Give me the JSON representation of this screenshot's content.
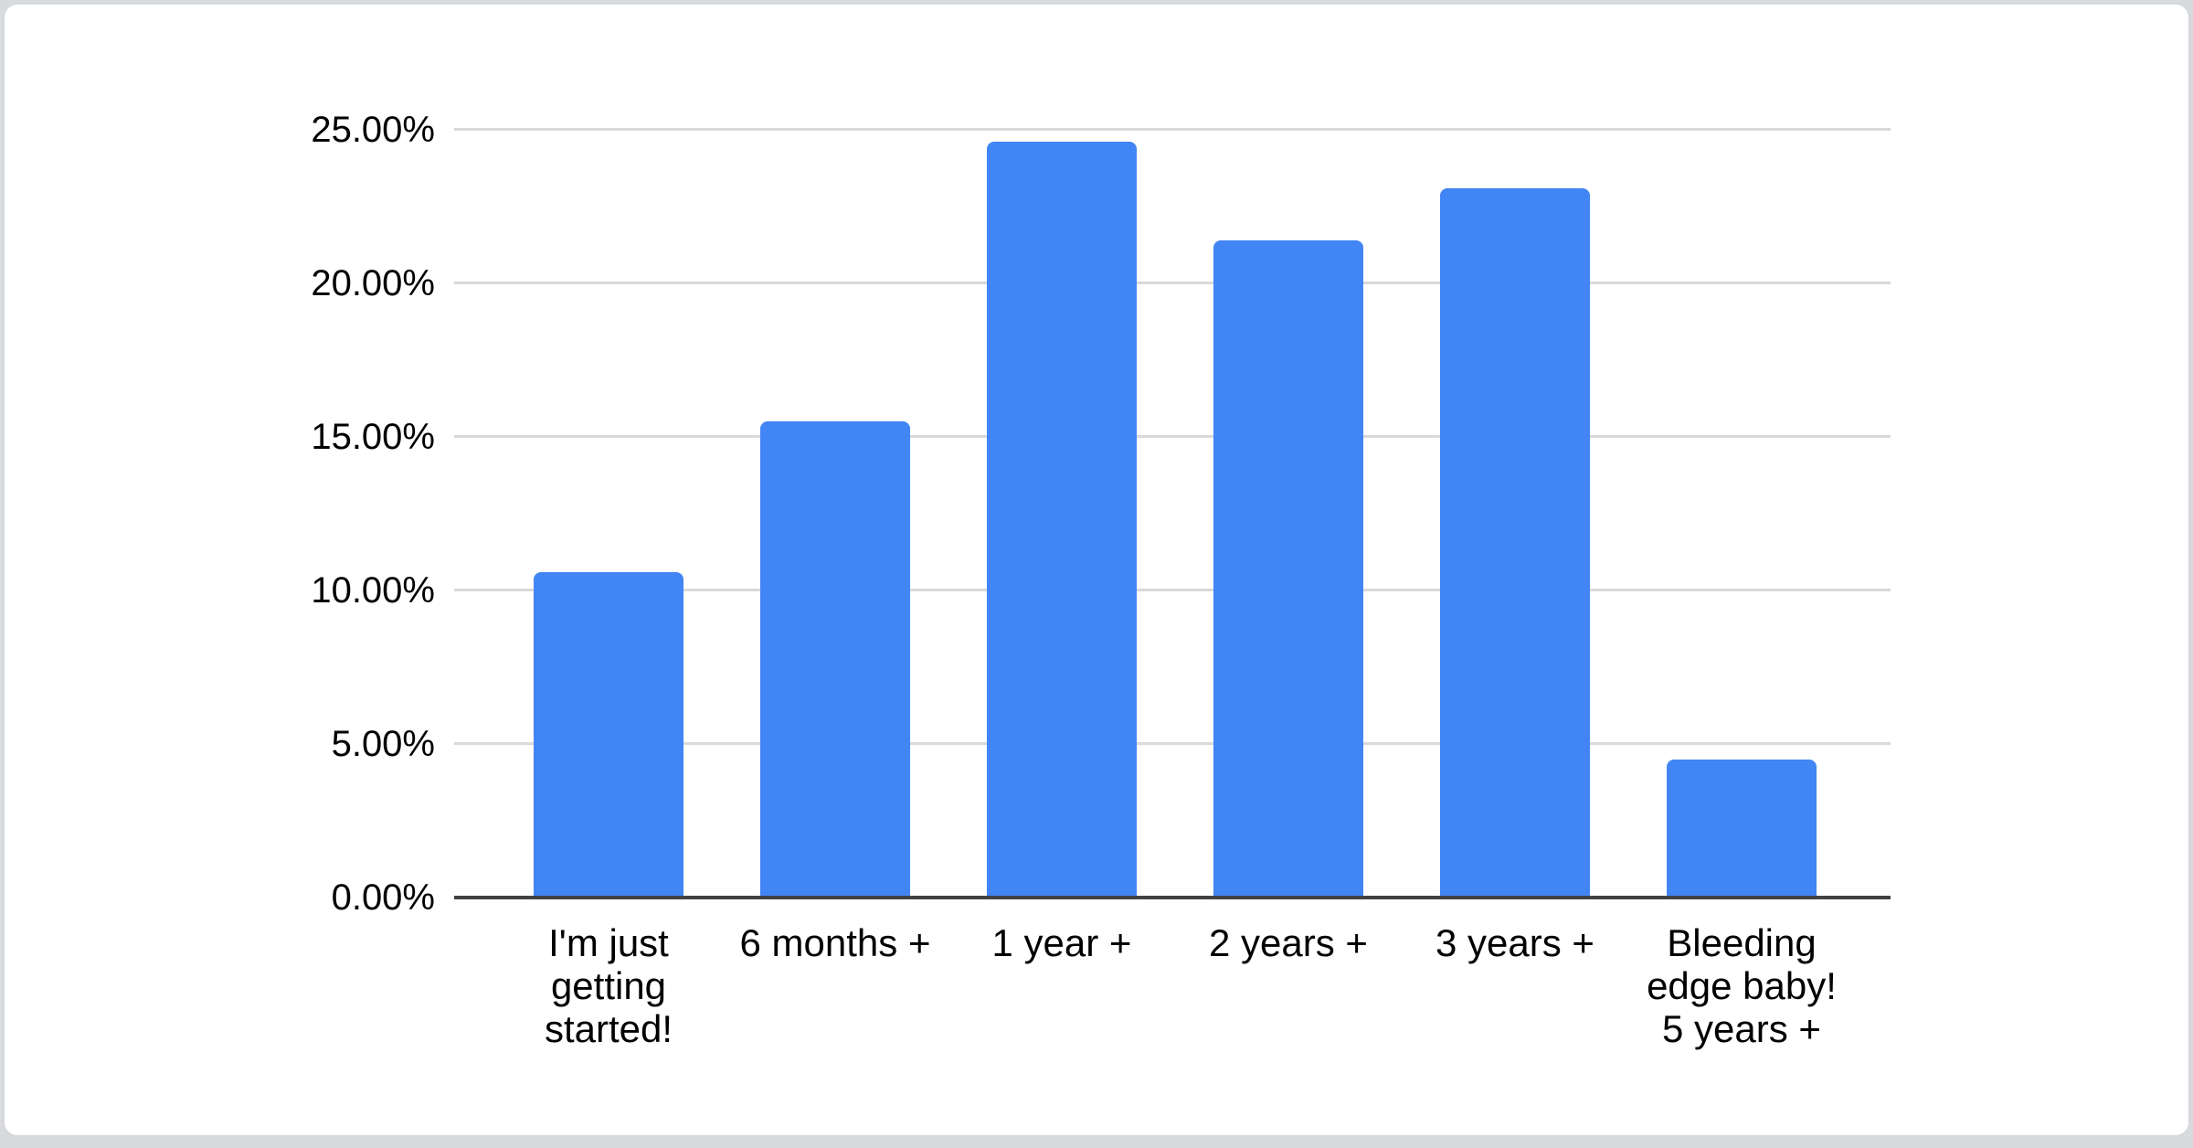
{
  "window": {
    "background_color": "#d8dade",
    "card_background": "#ffffff",
    "card_border_color": "#d5d8db"
  },
  "chart_data": {
    "type": "bar",
    "title": "",
    "xlabel": "",
    "ylabel": "",
    "categories": [
      "I'm just\ngetting\nstarted!",
      "6 months +",
      "1 year +",
      "2 years +",
      "3 years +",
      "Bleeding\nedge baby!\n5 years +"
    ],
    "values": [
      10.6,
      15.5,
      24.6,
      21.4,
      23.1,
      4.5
    ],
    "unit": "percent",
    "ylim": [
      0,
      25
    ],
    "y_ticks": [
      {
        "value": 25,
        "label": "25.00%"
      },
      {
        "value": 20,
        "label": "20.00%"
      },
      {
        "value": 15,
        "label": "15.00%"
      },
      {
        "value": 10,
        "label": "10.00%"
      },
      {
        "value": 5,
        "label": "5.00%"
      },
      {
        "value": 0,
        "label": "0.00%"
      }
    ],
    "grid": true,
    "legend": "none",
    "bar_color": "#4285f4",
    "gridline_color": "#d9d9d9",
    "axis_line_color": "#424242",
    "text_color": "#000000"
  }
}
